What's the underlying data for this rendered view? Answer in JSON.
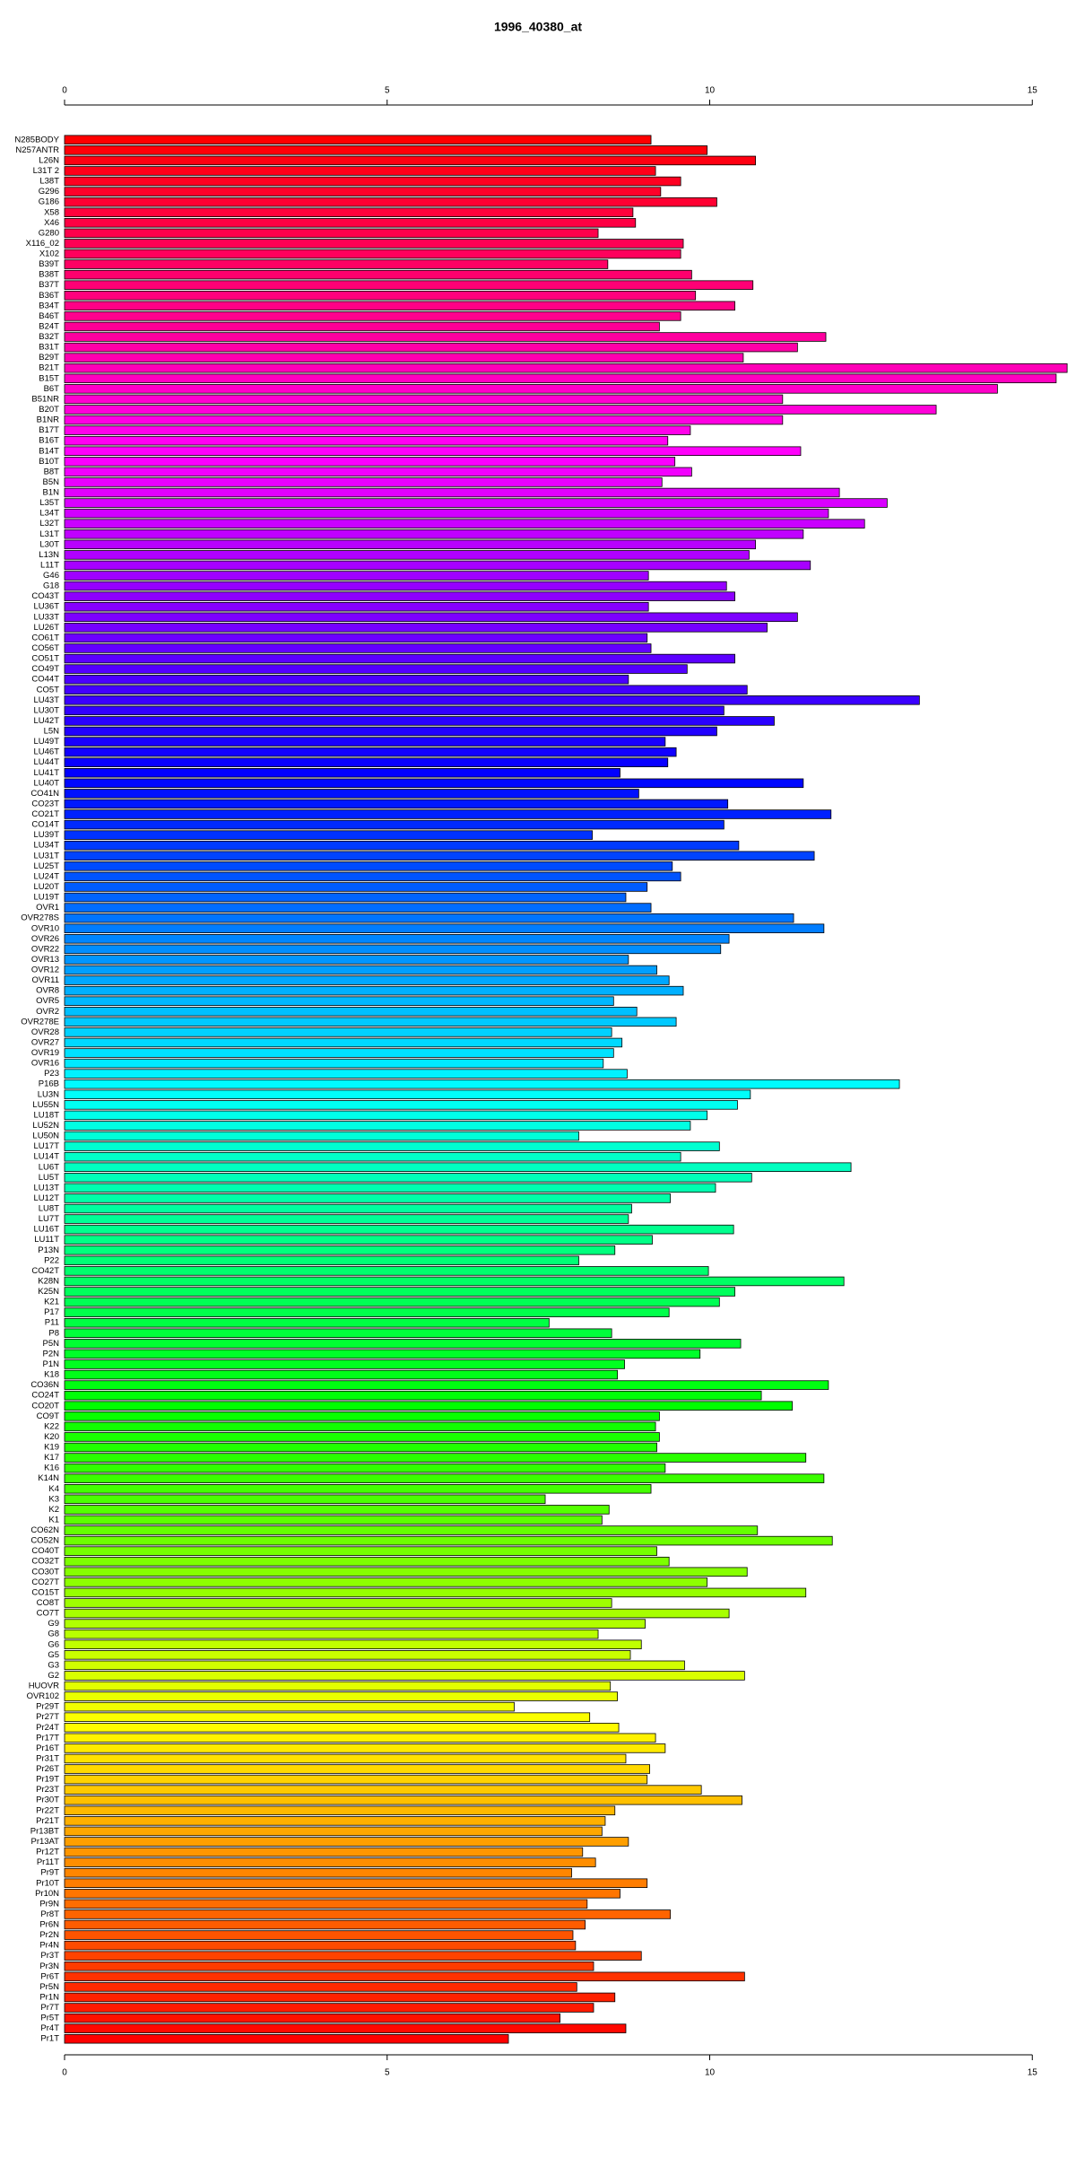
{
  "chart_data": {
    "type": "barh",
    "title": "1996_40380_at",
    "categories": [
      "N285BODY",
      "N257ANTR",
      "L26N",
      "L31T 2",
      "L38T",
      "G296",
      "G186",
      "X58",
      "X46",
      "G280",
      "X116_02",
      "X102",
      "B39T",
      "B38T",
      "B37T",
      "B36T",
      "B34T",
      "B46T",
      "B24T",
      "B32T",
      "B31T",
      "B29T",
      "B21T",
      "B15T",
      "B6T",
      "B51NR",
      "B20T",
      "B1NR",
      "B17T",
      "B16T",
      "B14T",
      "B10T",
      "B8T",
      "B5N",
      "B1N",
      "L35T",
      "L34T",
      "L32T",
      "L31T",
      "L30T",
      "L13N",
      "L11T",
      "G46",
      "G18",
      "CO43T",
      "LU36T",
      "LU33T",
      "LU26T",
      "CO61T",
      "CO56T",
      "CO51T",
      "CO49T",
      "CO44T",
      "CO5T",
      "LU43T",
      "LU30T",
      "LU42T",
      "L5N",
      "LU49T",
      "LU46T",
      "LU44T",
      "LU41T",
      "LU40T",
      "CO41N",
      "CO23T",
      "CO21T",
      "CO14T",
      "LU39T",
      "LU34T",
      "LU31T",
      "LU25T",
      "LU24T",
      "LU20T",
      "LU19T",
      "OVR1",
      "OVR278S",
      "OVR10",
      "OVR26",
      "OVR22",
      "OVR13",
      "OVR12",
      "OVR11",
      "OVR8",
      "OVR5",
      "OVR2",
      "OVR278E",
      "OVR28",
      "OVR27",
      "OVR19",
      "OVR16",
      "P23",
      "P16B",
      "LU3N",
      "LU55N",
      "LU18T",
      "LU52N",
      "LU50N",
      "LU17T",
      "LU14T",
      "LU6T",
      "LU5T",
      "LU13T",
      "LU12T",
      "LU8T",
      "LU7T",
      "LU16T",
      "LU11T",
      "P13N",
      "P22",
      "CO42T",
      "K28N",
      "K25N",
      "K21",
      "P17",
      "P11",
      "P8",
      "P5N",
      "P2N",
      "P1N",
      "K18",
      "CO36N",
      "CO24T",
      "CO20T",
      "CO9T",
      "K22",
      "K20",
      "K19",
      "K17",
      "K16",
      "K14N",
      "K4",
      "K3",
      "K2",
      "K1",
      "CO62N",
      "CO52N",
      "CO40T",
      "CO32T",
      "CO30T",
      "CO27T",
      "CO15T",
      "CO8T",
      "CO7T",
      "G9",
      "G8",
      "G6",
      "G5",
      "G3",
      "G2",
      "HUOVR",
      "OVR102",
      "Pr29T",
      "Pr27T",
      "Pr24T",
      "Pr17T",
      "Pr16T",
      "Pr31T",
      "Pr26T",
      "Pr19T",
      "Pr23T",
      "Pr30T",
      "Pr22T",
      "Pr21T",
      "Pr13BT",
      "Pr13AT",
      "Pr12T",
      "Pr11T",
      "Pr9T",
      "Pr10T",
      "Pr10N",
      "Pr9N",
      "Pr8T",
      "Pr6N",
      "Pr2N",
      "Pr4N",
      "Pr3T",
      "Pr3N",
      "Pr6T",
      "Pr5N",
      "Pr1N",
      "Pr7T",
      "Pr5T",
      "Pr4T",
      "Pr1T"
    ],
    "values": [
      9.09,
      9.96,
      10.71,
      9.16,
      9.55,
      9.24,
      10.11,
      8.81,
      8.85,
      8.27,
      9.59,
      9.55,
      8.42,
      9.72,
      10.67,
      9.78,
      10.39,
      9.55,
      9.22,
      11.8,
      11.36,
      10.52,
      15.54,
      15.37,
      14.46,
      11.13,
      13.51,
      11.13,
      9.7,
      9.35,
      11.41,
      9.46,
      9.72,
      9.26,
      12.01,
      12.75,
      11.84,
      12.4,
      11.45,
      10.71,
      10.61,
      11.56,
      9.05,
      10.26,
      10.39,
      9.05,
      11.36,
      10.89,
      9.03,
      9.09,
      10.39,
      9.65,
      8.74,
      10.58,
      13.25,
      10.22,
      11.0,
      10.11,
      9.31,
      9.48,
      9.35,
      8.61,
      11.45,
      8.9,
      10.28,
      11.88,
      10.22,
      8.18,
      10.45,
      11.62,
      9.42,
      9.55,
      9.03,
      8.7,
      9.09,
      11.3,
      11.77,
      10.3,
      10.17,
      8.74,
      9.18,
      9.37,
      9.59,
      8.51,
      8.87,
      9.48,
      8.48,
      8.64,
      8.51,
      8.35,
      8.72,
      12.94,
      10.63,
      10.43,
      9.96,
      9.7,
      7.97,
      10.15,
      9.55,
      12.19,
      10.65,
      10.09,
      9.39,
      8.79,
      8.74,
      10.37,
      9.11,
      8.53,
      7.97,
      9.98,
      12.08,
      10.39,
      10.15,
      9.37,
      7.51,
      8.48,
      10.48,
      9.85,
      8.68,
      8.57,
      11.84,
      10.8,
      11.28,
      9.22,
      9.16,
      9.22,
      9.18,
      11.49,
      9.31,
      11.77,
      9.09,
      7.45,
      8.44,
      8.33,
      10.74,
      11.9,
      9.18,
      9.37,
      10.58,
      9.96,
      11.49,
      8.48,
      10.3,
      9.0,
      8.27,
      8.94,
      8.77,
      9.61,
      10.54,
      8.46,
      8.57,
      6.97,
      8.14,
      8.59,
      9.16,
      9.31,
      8.7,
      9.07,
      9.03,
      9.87,
      10.5,
      8.53,
      8.38,
      8.33,
      8.74,
      8.03,
      8.23,
      7.86,
      9.03,
      8.61,
      8.1,
      9.39,
      8.07,
      7.88,
      7.92,
      8.94,
      8.2,
      10.54,
      7.94,
      8.53,
      8.2,
      7.68,
      8.7,
      6.88
    ],
    "colormap": "rainbow",
    "xlim": [
      0,
      15.58
    ],
    "xticks": [
      0,
      5,
      10,
      15
    ]
  }
}
